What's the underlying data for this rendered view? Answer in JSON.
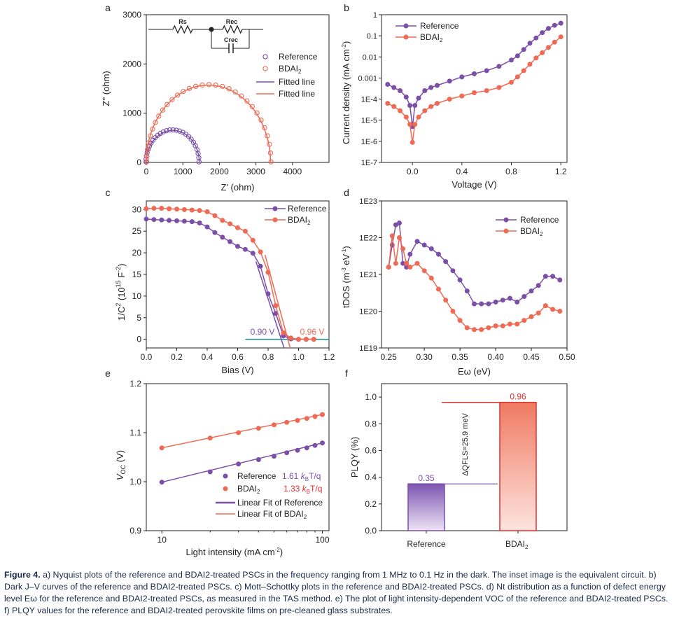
{
  "colors": {
    "reference": "#7b4fa8",
    "bdai": "#ee6a53",
    "axis": "#222222",
    "caption": "#1a2a4a",
    "tangent": "#1c8c8c",
    "pl_red": "#e03030"
  },
  "chart_data": [
    {
      "panel": "a",
      "type": "scatter",
      "title": "",
      "xlabel": "Z' (ohm)",
      "ylabel": "Z'' (ohm)",
      "xlim": [
        0,
        5000
      ],
      "ylim": [
        0,
        3000
      ],
      "xticks": [
        "0",
        "1000",
        "2000",
        "3000",
        "4000"
      ],
      "yticks": [
        "0",
        "1000",
        "2000",
        "3000"
      ],
      "legend": [
        "Reference",
        "BDAI2",
        "Fitted line",
        "Fitted line"
      ],
      "inset_labels": [
        "Rs",
        "Rec",
        "Crec"
      ],
      "series": [
        {
          "name": "Reference",
          "arc_start": 0,
          "arc_end": 1450,
          "peak": 650
        },
        {
          "name": "BDAI2",
          "arc_start": 0,
          "arc_end": 3400,
          "peak": 1570
        }
      ]
    },
    {
      "panel": "b",
      "type": "line",
      "scale_y": "log",
      "xlabel": "Voltage (V)",
      "ylabel": "Current density (mA cm-2)",
      "xlim": [
        -0.25,
        1.25
      ],
      "ylim_exp": [
        -7,
        0
      ],
      "xticks": [
        "0.0",
        "0.4",
        "0.8",
        "1.2"
      ],
      "yticks": [
        "1E-7",
        "1E-6",
        "1E-5",
        "1E-4",
        "0.001",
        "0.01",
        "0.1",
        "1"
      ],
      "legend": [
        "Reference",
        "BDAI2"
      ],
      "series": [
        {
          "name": "Reference",
          "x": [
            -0.2,
            -0.15,
            -0.1,
            -0.05,
            -0.02,
            0.0,
            0.02,
            0.05,
            0.1,
            0.15,
            0.2,
            0.3,
            0.4,
            0.5,
            0.6,
            0.7,
            0.8,
            0.85,
            0.9,
            0.95,
            1.0,
            1.05,
            1.1,
            1.15,
            1.2
          ],
          "logy": [
            -3.3,
            -3.45,
            -3.6,
            -3.9,
            -4.3,
            -5.3,
            -4.3,
            -3.95,
            -3.6,
            -3.45,
            -3.35,
            -3.15,
            -2.95,
            -2.8,
            -2.65,
            -2.45,
            -2.15,
            -1.95,
            -1.65,
            -1.35,
            -1.1,
            -0.85,
            -0.65,
            -0.5,
            -0.4
          ]
        },
        {
          "name": "BDAI2",
          "x": [
            -0.2,
            -0.15,
            -0.1,
            -0.05,
            -0.02,
            0.0,
            0.02,
            0.05,
            0.1,
            0.15,
            0.2,
            0.3,
            0.4,
            0.5,
            0.6,
            0.7,
            0.8,
            0.85,
            0.9,
            0.95,
            1.0,
            1.05,
            1.1,
            1.15,
            1.2
          ],
          "logy": [
            -4.2,
            -4.35,
            -4.55,
            -4.85,
            -5.2,
            -6.05,
            -5.2,
            -4.85,
            -4.55,
            -4.35,
            -4.2,
            -4.0,
            -3.85,
            -3.7,
            -3.6,
            -3.45,
            -3.2,
            -2.95,
            -2.65,
            -2.35,
            -2.05,
            -1.8,
            -1.55,
            -1.3,
            -1.05
          ]
        }
      ]
    },
    {
      "panel": "c",
      "type": "line",
      "xlabel": "Bias (V)",
      "ylabel": "1/C2 (1015 F-2)",
      "xlim": [
        0.0,
        1.2
      ],
      "ylim": [
        -2,
        32
      ],
      "xticks": [
        "0.0",
        "0.2",
        "0.4",
        "0.6",
        "0.8",
        "1.0",
        "1.2"
      ],
      "yticks": [
        "0",
        "5",
        "10",
        "15",
        "20",
        "25",
        "30"
      ],
      "legend": [
        "Reference",
        "BDAI2"
      ],
      "annotations": [
        "0.90 V",
        "0.96 V"
      ],
      "series": [
        {
          "name": "Reference",
          "x": [
            0.0,
            0.05,
            0.1,
            0.15,
            0.2,
            0.25,
            0.3,
            0.35,
            0.4,
            0.45,
            0.5,
            0.55,
            0.6,
            0.65,
            0.7,
            0.75,
            0.8,
            0.85,
            0.9,
            0.95,
            1.0,
            1.05,
            1.1
          ],
          "y": [
            27.8,
            27.7,
            27.6,
            27.5,
            27.4,
            27.3,
            27.2,
            26.9,
            26.0,
            24.7,
            23.6,
            22.6,
            21.5,
            20.8,
            19.9,
            16.9,
            10.5,
            6.0,
            0.8,
            0.1,
            0.0,
            0.0,
            0.0
          ]
        },
        {
          "name": "BDAI2",
          "x": [
            0.0,
            0.05,
            0.1,
            0.15,
            0.2,
            0.25,
            0.3,
            0.35,
            0.4,
            0.45,
            0.5,
            0.55,
            0.6,
            0.65,
            0.7,
            0.75,
            0.8,
            0.85,
            0.9,
            0.95,
            1.0,
            1.05,
            1.1
          ],
          "y": [
            30.2,
            30.3,
            30.3,
            30.2,
            30.1,
            30.0,
            29.9,
            29.8,
            29.5,
            28.6,
            27.5,
            26.7,
            25.8,
            25.0,
            22.9,
            20.2,
            15.5,
            7.8,
            1.5,
            0.3,
            0.0,
            0.0,
            0.0
          ]
        }
      ]
    },
    {
      "panel": "d",
      "type": "line",
      "scale_y": "log",
      "xlabel": "Eω (eV)",
      "ylabel": "tDOS (m-3 eV-1)",
      "xlim": [
        0.24,
        0.5
      ],
      "ylim_exp": [
        19,
        23
      ],
      "xticks": [
        "0.25",
        "0.30",
        "0.35",
        "0.40",
        "0.45",
        "0.50"
      ],
      "yticks": [
        "1E19",
        "1E20",
        "1E21",
        "1E22",
        "1E23"
      ],
      "legend": [
        "Reference",
        "BDAI2"
      ],
      "series": [
        {
          "name": "Reference",
          "x": [
            0.25,
            0.255,
            0.26,
            0.265,
            0.27,
            0.275,
            0.28,
            0.29,
            0.3,
            0.31,
            0.32,
            0.33,
            0.34,
            0.35,
            0.36,
            0.37,
            0.38,
            0.39,
            0.4,
            0.41,
            0.42,
            0.43,
            0.44,
            0.45,
            0.46,
            0.47,
            0.48,
            0.49
          ],
          "logy": [
            21.2,
            21.8,
            22.35,
            22.4,
            21.3,
            21.2,
            21.55,
            21.9,
            21.8,
            21.7,
            21.55,
            21.35,
            21.1,
            20.85,
            20.55,
            20.2,
            20.2,
            20.2,
            20.25,
            20.3,
            20.35,
            20.25,
            20.4,
            20.55,
            20.7,
            20.95,
            20.95,
            20.85
          ]
        },
        {
          "name": "BDAI2",
          "x": [
            0.25,
            0.255,
            0.26,
            0.265,
            0.27,
            0.275,
            0.28,
            0.29,
            0.3,
            0.31,
            0.32,
            0.33,
            0.34,
            0.35,
            0.36,
            0.37,
            0.38,
            0.39,
            0.4,
            0.41,
            0.42,
            0.43,
            0.44,
            0.45,
            0.46,
            0.47,
            0.48,
            0.49
          ],
          "logy": [
            21.2,
            22.05,
            21.3,
            22.0,
            21.7,
            21.3,
            21.2,
            21.3,
            21.1,
            20.9,
            20.6,
            20.3,
            20.0,
            19.75,
            19.55,
            19.5,
            19.5,
            19.55,
            19.6,
            19.6,
            19.65,
            19.65,
            19.75,
            19.85,
            19.95,
            20.15,
            20.05,
            20.0
          ]
        }
      ]
    },
    {
      "panel": "e",
      "type": "scatter",
      "scale_x": "log",
      "xlabel": "Light intensity (mA cm-2)",
      "ylabel": "VOC (V)",
      "xlim": [
        8,
        110
      ],
      "ylim": [
        0.9,
        1.2
      ],
      "xticks": [
        "10",
        "100"
      ],
      "yticks": [
        "0.9",
        "1.0",
        "1.1",
        "1.2"
      ],
      "legend": [
        "Reference",
        "1.61 kBT/q",
        "BDAI2",
        "1.33 kBT/q",
        "Linear Fit of Reference",
        "Linear Fit of BDAI2"
      ],
      "series": [
        {
          "name": "Reference",
          "x": [
            10,
            20,
            30,
            40,
            50,
            60,
            70,
            80,
            90,
            100
          ],
          "y": [
            0.999,
            1.02,
            1.036,
            1.045,
            1.052,
            1.059,
            1.064,
            1.069,
            1.074,
            1.079
          ]
        },
        {
          "name": "BDAI2",
          "x": [
            10,
            20,
            30,
            40,
            50,
            60,
            70,
            80,
            90,
            100
          ],
          "y": [
            1.069,
            1.089,
            1.1,
            1.109,
            1.116,
            1.121,
            1.125,
            1.129,
            1.133,
            1.137
          ]
        }
      ]
    },
    {
      "panel": "f",
      "type": "bar",
      "xlabel": "",
      "ylabel": "PLQY (%)",
      "ylim": [
        0.0,
        1.1
      ],
      "yticks": [
        "0.0",
        "0.2",
        "0.4",
        "0.6",
        "0.8",
        "1.0"
      ],
      "categories": [
        "Reference",
        "BDAI2"
      ],
      "values": [
        0.35,
        0.96
      ],
      "value_labels": [
        "0.35",
        "0.96"
      ],
      "annotation": "ΔQFLS=25.9 meV"
    }
  ],
  "figure": {
    "panel_letters": [
      "a",
      "b",
      "c",
      "d",
      "e",
      "f"
    ]
  },
  "caption": {
    "label": "Figure 4.",
    "text": "a) Nyquist plots of the reference and BDAI2-treated PSCs in the frequency ranging from 1 MHz to 0.1 Hz in the dark. The inset image is the equivalent circuit. b) Dark J–V curves of the reference and BDAI2-treated PSCs. c) Mott–Schottky plots in the reference and BDAI2-treated PSCs. d) Nt distribution as a function of defect energy level Eω for the reference and BDAI2-treated PSCs, as measured in the TAS method. e) The plot of light intensity-dependent VOC of the reference and BDAI2-treated PSCs. f) PLQY values for the reference and BDAI2-treated perovskite films on pre-cleaned glass substrates."
  }
}
